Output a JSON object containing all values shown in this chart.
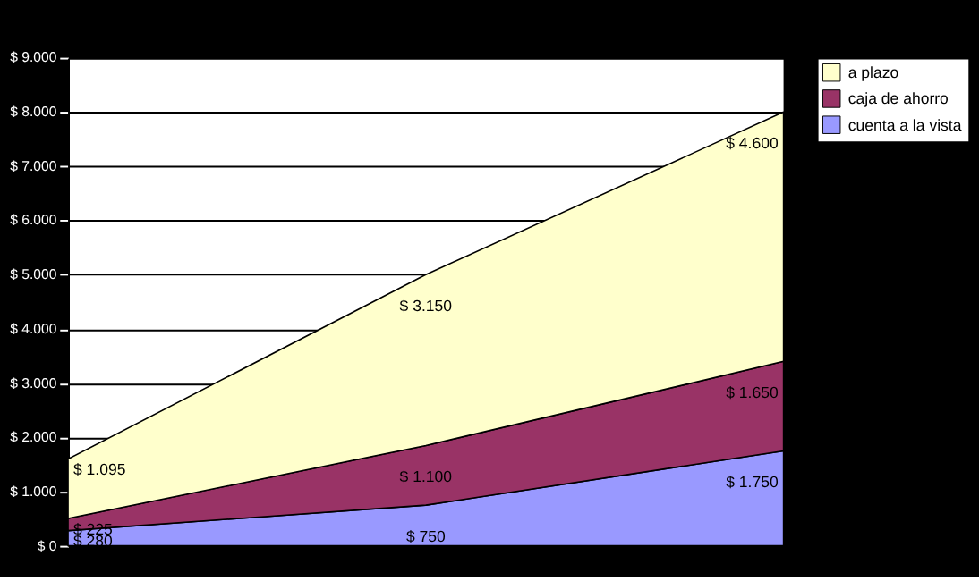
{
  "chart_data": {
    "type": "area",
    "stacked": true,
    "categories": [
      null,
      null,
      null
    ],
    "series": [
      {
        "name": "cuenta a la vista",
        "color": "#9999ff",
        "values": [
          280,
          750,
          1750
        ],
        "value_labels": [
          "$ 280",
          "$ 750",
          "$ 1.750"
        ]
      },
      {
        "name": "caja de ahorro",
        "color": "#993366",
        "values": [
          225,
          1100,
          1650
        ],
        "value_labels": [
          "$ 225",
          "$ 1.100",
          "$ 1.650"
        ]
      },
      {
        "name": "a plazo",
        "color": "#ffffcc",
        "values": [
          1095,
          3150,
          4600
        ],
        "value_labels": [
          "$ 1.095",
          "$ 3.150",
          "$ 4.600"
        ]
      }
    ],
    "ylim": [
      0,
      9000
    ],
    "yticks": [
      {
        "value": 0,
        "label": "$ 0"
      },
      {
        "value": 1000,
        "label": "$ 1.000"
      },
      {
        "value": 2000,
        "label": "$ 2.000"
      },
      {
        "value": 3000,
        "label": "$ 3.000"
      },
      {
        "value": 4000,
        "label": "$ 4.000"
      },
      {
        "value": 5000,
        "label": "$ 5.000"
      },
      {
        "value": 6000,
        "label": "$ 6.000"
      },
      {
        "value": 7000,
        "label": "$ 7.000"
      },
      {
        "value": 8000,
        "label": "$ 8.000"
      },
      {
        "value": 9000,
        "label": "$ 9.000"
      }
    ],
    "grid": "y",
    "legend": "right"
  }
}
